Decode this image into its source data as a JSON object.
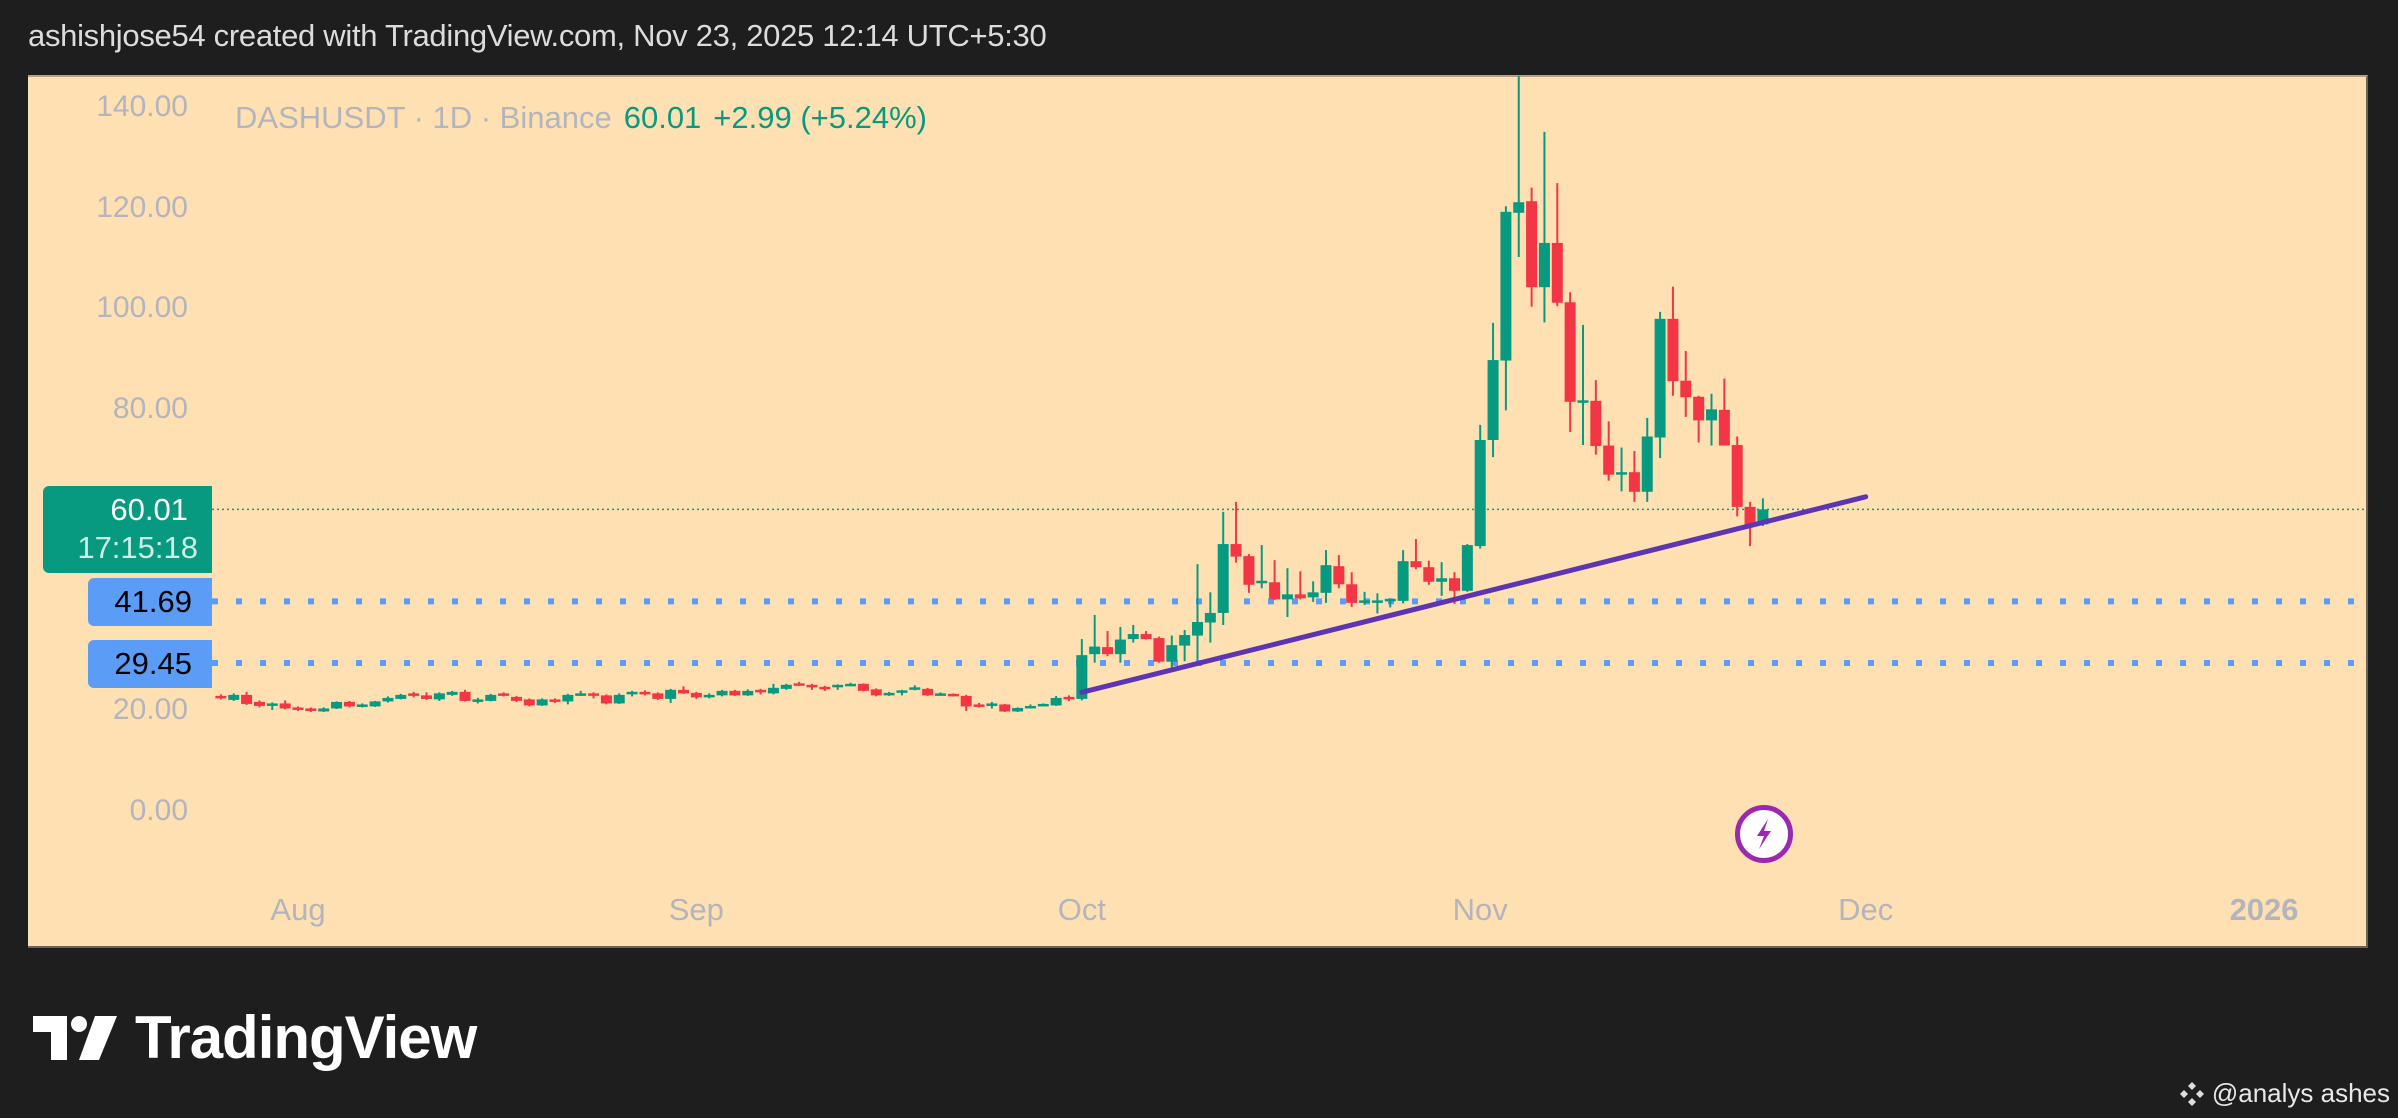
{
  "header": {
    "caption": "ashishjose54 created with TradingView.com, Nov 23, 2025 12:14 UTC+5:30"
  },
  "legend": {
    "symbol": "DASHUSDT · 1D · Binance",
    "last": "60.01",
    "change": "+2.99 (+5.24%)"
  },
  "price_tag": {
    "price": "60.01",
    "countdown": "17:15:18"
  },
  "levels": [
    {
      "label": "41.69",
      "value": 41.69
    },
    {
      "label": "29.45",
      "value": 29.45
    }
  ],
  "footer": {
    "brand": "TradingView",
    "watermark": "@analys ashes"
  },
  "icons": {
    "event": "lightning-bolt-icon",
    "logo": "tradingview-logo-icon",
    "watermark": "binance-logo-icon"
  },
  "colors": {
    "background": "#ffe0b2",
    "up": "#089981",
    "down": "#f23645",
    "level": "#5b9cf6",
    "trendline": "#5e35b1",
    "event": "#9c27b0"
  },
  "chart_data": {
    "type": "candlestick",
    "title": "DASHUSDT · 1D · Binance",
    "ylim": [
      0,
      146
    ],
    "y_ticks": [
      "140.00",
      "120.00",
      "100.00",
      "80.00",
      "20.00",
      "0.00"
    ],
    "x_ticks": [
      {
        "label": "Aug",
        "date": "2025-08-01"
      },
      {
        "label": "Sep",
        "date": "2025-09-01"
      },
      {
        "label": "Oct",
        "date": "2025-10-01"
      },
      {
        "label": "Nov",
        "date": "2025-11-01"
      },
      {
        "label": "Dec",
        "date": "2025-12-01"
      },
      {
        "label": "2026",
        "date": "2026-01-01"
      }
    ],
    "grid": false,
    "last_price": 60.01,
    "horizontal_levels": [
      41.69,
      29.45
    ],
    "trendline": {
      "start": {
        "date": "2025-10-01",
        "price": 23.6
      },
      "end": {
        "date": "2025-12-01",
        "price": 62.5
      }
    },
    "event_marker_date": "2025-11-23",
    "candles_columns": [
      "date",
      "open",
      "high",
      "low",
      "close"
    ],
    "candles": [
      [
        "2025-07-26",
        22.9,
        23.2,
        22.2,
        22.7
      ],
      [
        "2025-07-27",
        22.1,
        23.4,
        21.9,
        23.1
      ],
      [
        "2025-07-28",
        23.1,
        23.7,
        21.1,
        21.3
      ],
      [
        "2025-07-29",
        21.7,
        22.0,
        20.6,
        20.9
      ],
      [
        "2025-07-30",
        21.3,
        21.6,
        20.1,
        21.4
      ],
      [
        "2025-07-31",
        21.4,
        22.0,
        20.2,
        20.4
      ],
      [
        "2025-08-01",
        20.6,
        20.8,
        19.9,
        20.2
      ],
      [
        "2025-08-02",
        20.4,
        20.6,
        19.7,
        20.1
      ],
      [
        "2025-08-03",
        19.8,
        20.6,
        19.7,
        20.4
      ],
      [
        "2025-08-04",
        20.4,
        21.8,
        20.3,
        21.7
      ],
      [
        "2025-08-05",
        21.7,
        21.9,
        20.6,
        20.8
      ],
      [
        "2025-08-06",
        21.0,
        21.4,
        20.6,
        21.2
      ],
      [
        "2025-08-07",
        20.8,
        21.9,
        20.7,
        21.8
      ],
      [
        "2025-08-08",
        21.8,
        22.8,
        21.6,
        22.5
      ],
      [
        "2025-08-09",
        22.3,
        23.3,
        22.2,
        23.1
      ],
      [
        "2025-08-10",
        23.4,
        23.7,
        22.6,
        22.9
      ],
      [
        "2025-08-11",
        23.0,
        23.6,
        22.1,
        22.3
      ],
      [
        "2025-08-12",
        22.2,
        23.6,
        21.9,
        23.4
      ],
      [
        "2025-08-13",
        23.1,
        23.9,
        22.9,
        23.7
      ],
      [
        "2025-08-14",
        23.7,
        24.1,
        21.8,
        21.9
      ],
      [
        "2025-08-15",
        22.0,
        22.5,
        21.4,
        22.2
      ],
      [
        "2025-08-16",
        21.9,
        23.3,
        21.8,
        23.1
      ],
      [
        "2025-08-17",
        23.4,
        23.6,
        22.8,
        23.0
      ],
      [
        "2025-08-18",
        22.7,
        22.9,
        21.7,
        21.9
      ],
      [
        "2025-08-19",
        22.2,
        22.4,
        20.8,
        21.0
      ],
      [
        "2025-08-20",
        21.0,
        22.4,
        20.9,
        22.2
      ],
      [
        "2025-08-21",
        22.2,
        22.4,
        21.5,
        21.8
      ],
      [
        "2025-08-22",
        21.8,
        23.3,
        21.2,
        23.1
      ],
      [
        "2025-08-23",
        23.1,
        23.9,
        22.9,
        23.4
      ],
      [
        "2025-08-24",
        23.4,
        23.6,
        22.4,
        23.0
      ],
      [
        "2025-08-25",
        23.0,
        23.2,
        21.2,
        21.4
      ],
      [
        "2025-08-26",
        21.4,
        23.4,
        21.3,
        23.1
      ],
      [
        "2025-08-27",
        23.4,
        23.9,
        22.8,
        23.7
      ],
      [
        "2025-08-28",
        23.7,
        24.0,
        23.0,
        23.3
      ],
      [
        "2025-08-29",
        23.4,
        23.6,
        22.1,
        22.3
      ],
      [
        "2025-08-30",
        22.3,
        24.3,
        21.5,
        24.1
      ],
      [
        "2025-08-31",
        24.1,
        24.8,
        23.3,
        23.4
      ],
      [
        "2025-09-01",
        23.5,
        23.7,
        22.3,
        22.6
      ],
      [
        "2025-09-02",
        22.6,
        23.4,
        22.4,
        23.1
      ],
      [
        "2025-09-03",
        23.0,
        24.1,
        22.8,
        23.9
      ],
      [
        "2025-09-04",
        23.9,
        24.1,
        22.9,
        23.0
      ],
      [
        "2025-09-05",
        23.0,
        24.2,
        22.9,
        23.9
      ],
      [
        "2025-09-06",
        24.1,
        24.3,
        23.2,
        23.7
      ],
      [
        "2025-09-07",
        23.4,
        25.3,
        23.2,
        24.5
      ],
      [
        "2025-09-08",
        24.3,
        25.3,
        24.1,
        25.1
      ],
      [
        "2025-09-09",
        25.4,
        25.7,
        24.9,
        25.0
      ],
      [
        "2025-09-10",
        25.1,
        25.3,
        24.1,
        24.7
      ],
      [
        "2025-09-11",
        24.7,
        24.9,
        23.9,
        24.5
      ],
      [
        "2025-09-12",
        24.9,
        25.2,
        24.1,
        25.1
      ],
      [
        "2025-09-13",
        24.9,
        25.5,
        24.8,
        25.3
      ],
      [
        "2025-09-14",
        25.3,
        25.4,
        23.8,
        23.9
      ],
      [
        "2025-09-15",
        24.2,
        24.4,
        22.8,
        23.0
      ],
      [
        "2025-09-16",
        23.0,
        23.7,
        22.9,
        23.5
      ],
      [
        "2025-09-17",
        23.8,
        24.1,
        23.0,
        24.0
      ],
      [
        "2025-09-18",
        24.2,
        25.0,
        24.0,
        24.6
      ],
      [
        "2025-09-19",
        24.3,
        24.5,
        22.9,
        23.0
      ],
      [
        "2025-09-20",
        23.2,
        23.6,
        23.0,
        23.4
      ],
      [
        "2025-09-21",
        23.3,
        23.4,
        22.8,
        23.0
      ],
      [
        "2025-09-22",
        22.9,
        23.1,
        19.9,
        20.8
      ],
      [
        "2025-09-23",
        21.2,
        21.5,
        20.6,
        20.8
      ],
      [
        "2025-09-24",
        20.9,
        21.7,
        20.4,
        21.4
      ],
      [
        "2025-09-25",
        21.2,
        21.3,
        19.7,
        19.8
      ],
      [
        "2025-09-26",
        19.8,
        20.6,
        19.7,
        20.5
      ],
      [
        "2025-09-27",
        20.7,
        21.2,
        20.4,
        20.9
      ],
      [
        "2025-09-28",
        20.9,
        21.4,
        20.8,
        21.3
      ],
      [
        "2025-09-29",
        21.0,
        22.9,
        20.9,
        22.5
      ],
      [
        "2025-09-30",
        22.7,
        23.0,
        21.9,
        22.3
      ],
      [
        "2025-10-01",
        22.3,
        34.2,
        22.0,
        31.0
      ],
      [
        "2025-10-02",
        31.2,
        39.0,
        29.5,
        32.7
      ],
      [
        "2025-10-03",
        32.6,
        35.8,
        30.8,
        31.2
      ],
      [
        "2025-10-04",
        31.2,
        36.6,
        29.5,
        34.1
      ],
      [
        "2025-10-05",
        34.2,
        37.0,
        33.5,
        35.2
      ],
      [
        "2025-10-06",
        35.2,
        35.8,
        34.1,
        34.2
      ],
      [
        "2025-10-07",
        34.4,
        34.7,
        29.5,
        29.7
      ],
      [
        "2025-10-08",
        29.7,
        34.9,
        28.4,
        33.0
      ],
      [
        "2025-10-09",
        32.9,
        36.0,
        29.8,
        35.0
      ],
      [
        "2025-10-10",
        34.9,
        49.1,
        30.0,
        37.6
      ],
      [
        "2025-10-11",
        37.5,
        43.5,
        33.5,
        39.4
      ],
      [
        "2025-10-12",
        39.4,
        59.5,
        37.0,
        53.1
      ],
      [
        "2025-10-13",
        53.1,
        61.5,
        49.4,
        50.6
      ],
      [
        "2025-10-14",
        50.7,
        51.1,
        43.4,
        45.0
      ],
      [
        "2025-10-15",
        45.4,
        52.9,
        44.3,
        45.8
      ],
      [
        "2025-10-16",
        45.5,
        49.9,
        42.0,
        42.1
      ],
      [
        "2025-10-17",
        42.1,
        48.3,
        38.6,
        43.1
      ],
      [
        "2025-10-18",
        43.1,
        47.7,
        42.1,
        42.3
      ],
      [
        "2025-10-19",
        42.5,
        45.7,
        41.6,
        43.5
      ],
      [
        "2025-10-20",
        43.4,
        51.9,
        41.4,
        48.9
      ],
      [
        "2025-10-21",
        48.7,
        50.9,
        44.3,
        45.1
      ],
      [
        "2025-10-22",
        45.1,
        47.5,
        40.6,
        41.4
      ],
      [
        "2025-10-23",
        41.7,
        43.6,
        41.0,
        41.9
      ],
      [
        "2025-10-24",
        41.8,
        43.3,
        39.3,
        41.9
      ],
      [
        "2025-10-25",
        42.0,
        42.3,
        40.5,
        42.2
      ],
      [
        "2025-10-26",
        41.8,
        51.9,
        41.3,
        49.7
      ],
      [
        "2025-10-27",
        49.7,
        54.1,
        48.1,
        48.5
      ],
      [
        "2025-10-28",
        48.5,
        49.8,
        45.0,
        45.6
      ],
      [
        "2025-10-29",
        45.6,
        49.5,
        42.8,
        46.3
      ],
      [
        "2025-10-30",
        46.3,
        47.5,
        41.2,
        43.8
      ],
      [
        "2025-10-31",
        43.8,
        53.1,
        43.6,
        52.9
      ],
      [
        "2025-11-01",
        52.7,
        76.8,
        52.2,
        73.8
      ],
      [
        "2025-11-02",
        73.8,
        97.1,
        70.4,
        89.7
      ],
      [
        "2025-11-03",
        89.6,
        120.3,
        79.7,
        119.2
      ],
      [
        "2025-11-04",
        119.0,
        146.2,
        110.2,
        121.1
      ],
      [
        "2025-11-05",
        121.3,
        124.0,
        100.3,
        104.2
      ],
      [
        "2025-11-06",
        104.2,
        135.1,
        97.2,
        113.0
      ],
      [
        "2025-11-07",
        113.0,
        124.9,
        100.4,
        101.1
      ],
      [
        "2025-11-08",
        101.2,
        103.2,
        75.4,
        81.4
      ],
      [
        "2025-11-09",
        81.4,
        96.7,
        72.8,
        81.7
      ],
      [
        "2025-11-10",
        81.6,
        85.7,
        70.9,
        72.6
      ],
      [
        "2025-11-11",
        72.7,
        77.5,
        65.7,
        66.9
      ],
      [
        "2025-11-12",
        67.0,
        72.3,
        63.6,
        67.4
      ],
      [
        "2025-11-13",
        67.4,
        71.6,
        61.5,
        63.5
      ],
      [
        "2025-11-14",
        63.5,
        78.2,
        61.5,
        74.5
      ],
      [
        "2025-11-15",
        74.3,
        99.3,
        70.2,
        97.9
      ],
      [
        "2025-11-16",
        97.9,
        104.3,
        82.6,
        85.5
      ],
      [
        "2025-11-17",
        85.6,
        91.5,
        78.4,
        82.3
      ],
      [
        "2025-11-18",
        82.4,
        82.6,
        73.3,
        77.7
      ],
      [
        "2025-11-19",
        77.7,
        83.0,
        72.7,
        79.9
      ],
      [
        "2025-11-20",
        79.8,
        86.0,
        72.7,
        72.7
      ],
      [
        "2025-11-21",
        72.8,
        74.5,
        58.6,
        60.5
      ],
      [
        "2025-11-22",
        60.5,
        61.5,
        52.7,
        56.7
      ],
      [
        "2025-11-23",
        57.02,
        62.2,
        56.7,
        60.01
      ]
    ]
  }
}
